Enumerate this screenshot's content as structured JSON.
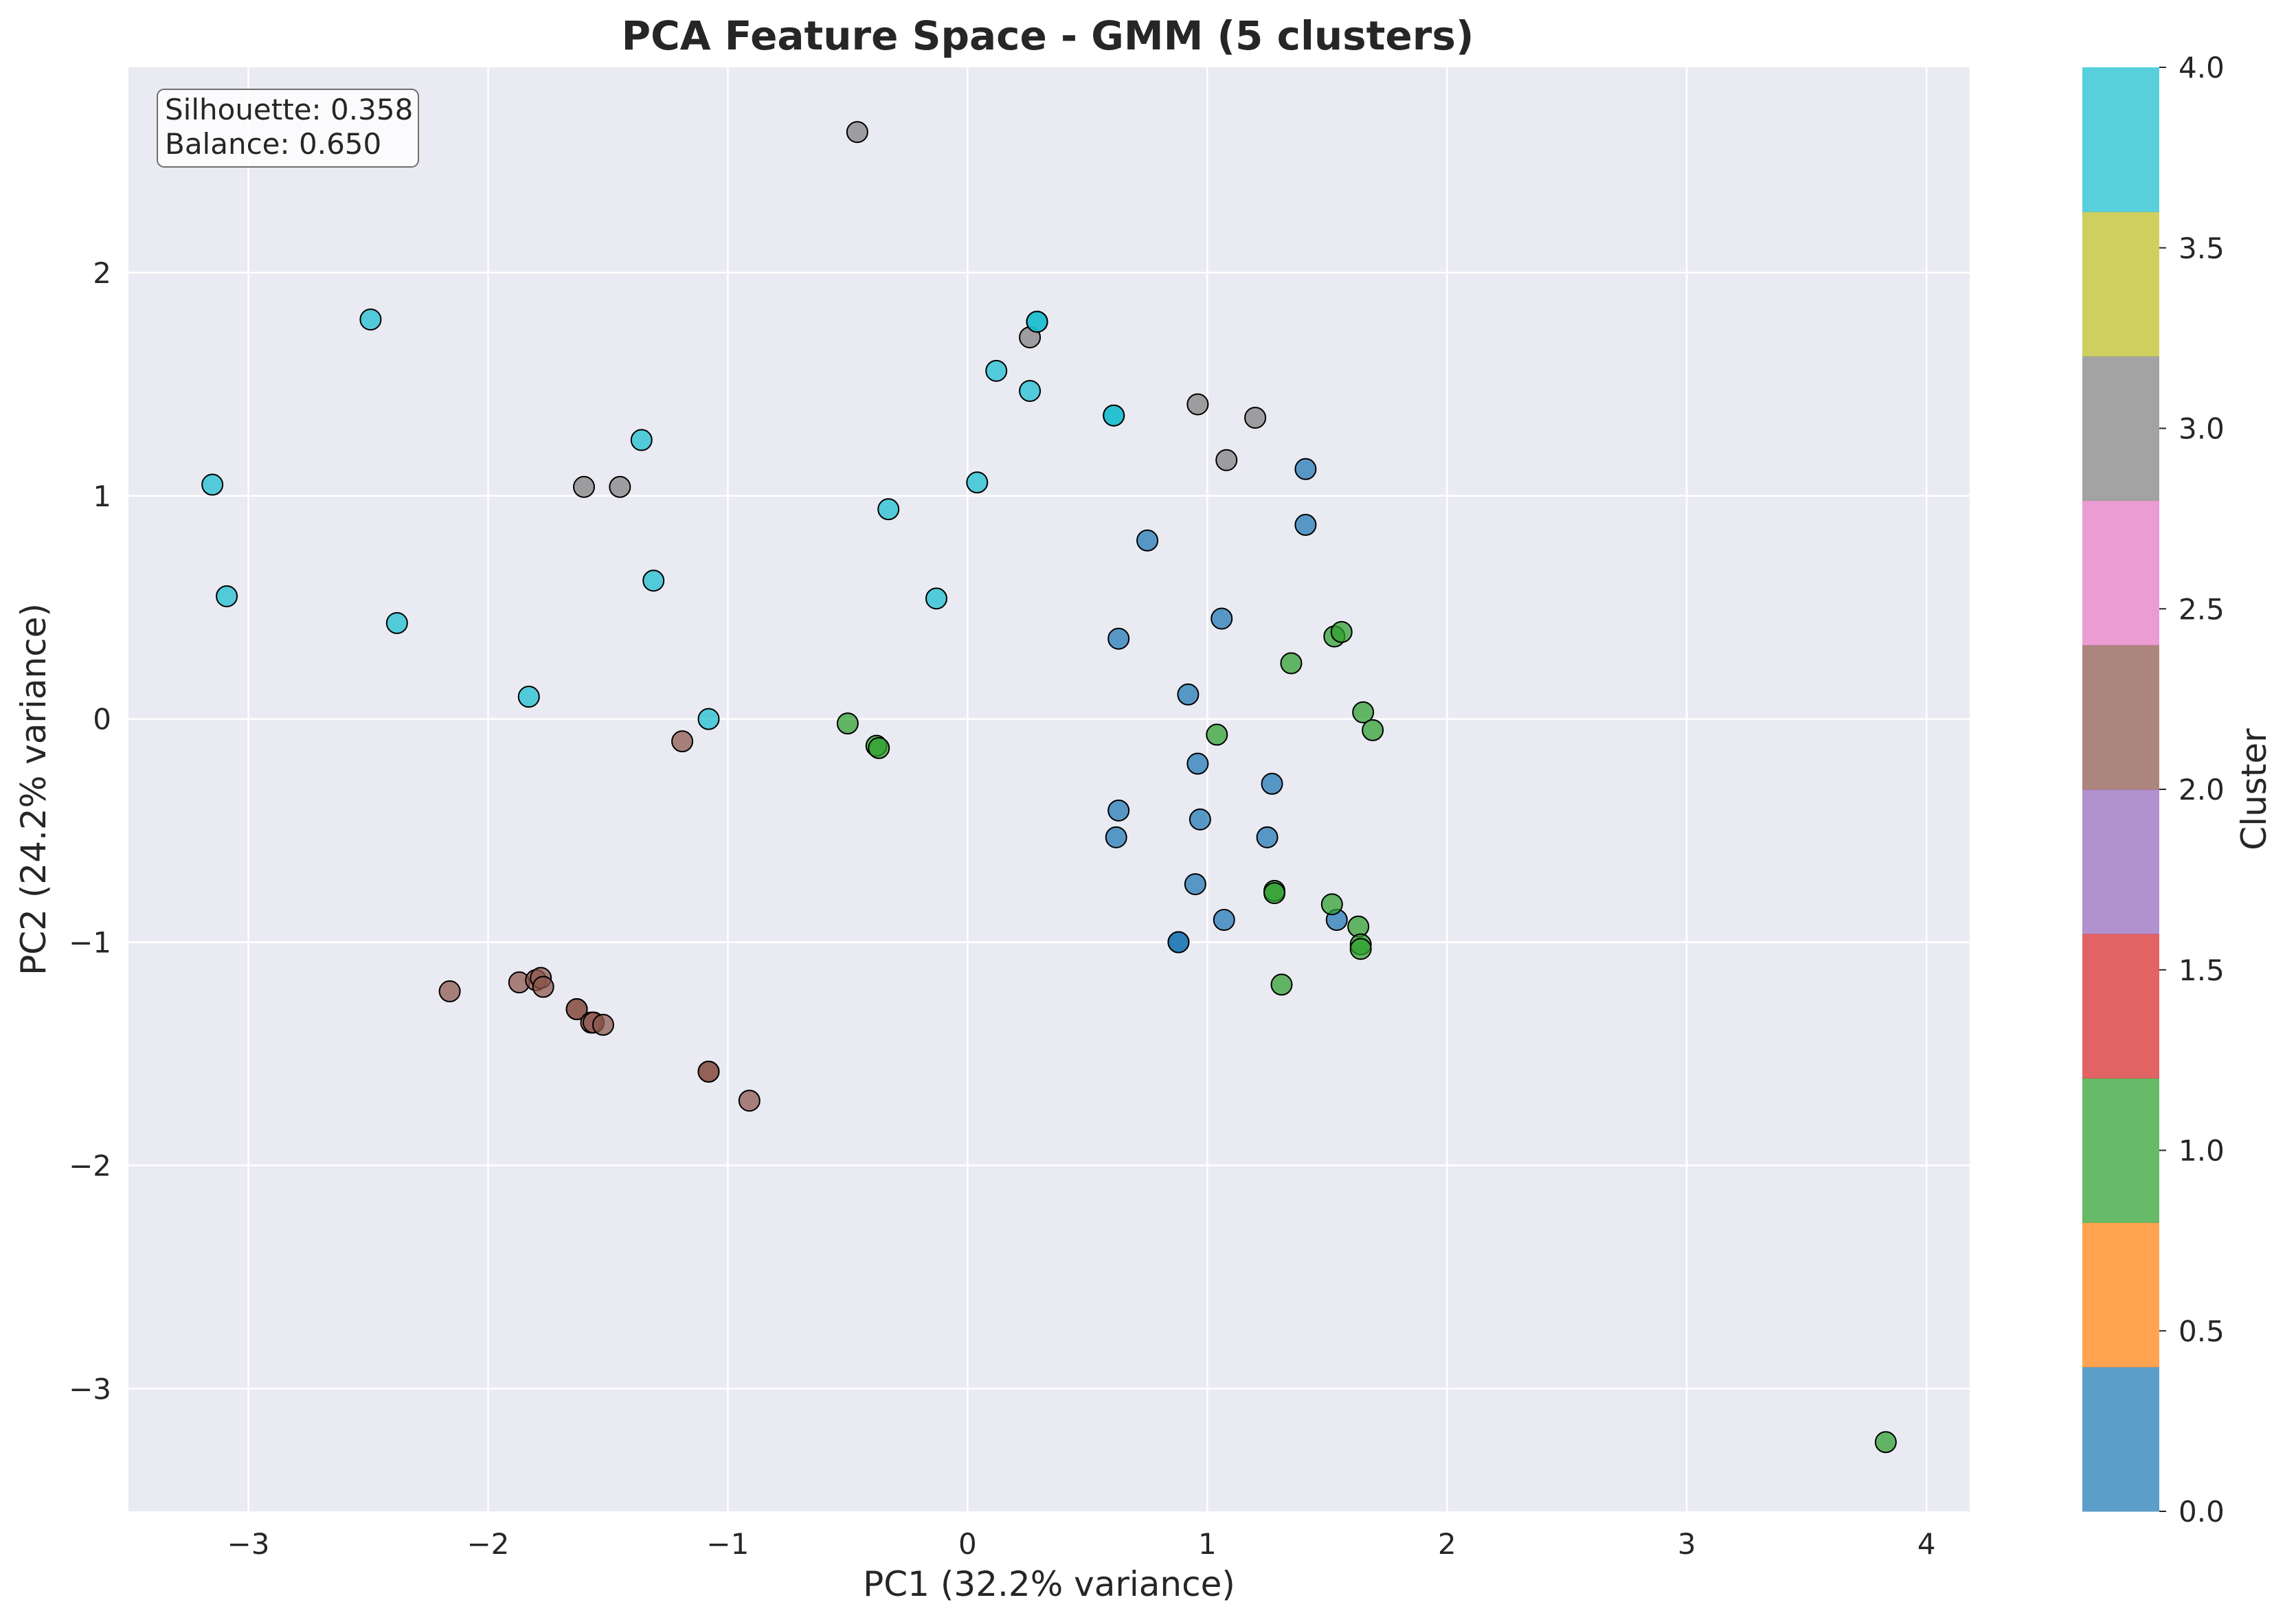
{
  "chart_data": {
    "type": "scatter",
    "title": "PCA Feature Space - GMM (5 clusters)",
    "xlabel": "PC1 (32.2% variance)",
    "ylabel": "PC2 (24.2% variance)",
    "xlim": [
      -3.5,
      4.18
    ],
    "ylim": [
      -3.55,
      2.92
    ],
    "xticks": [
      -3,
      -2,
      -1,
      0,
      1,
      2,
      3,
      4
    ],
    "xtick_labels": [
      "−3",
      "−2",
      "−1",
      "0",
      "1",
      "2",
      "3",
      "4"
    ],
    "yticks": [
      -3,
      -2,
      -1,
      0,
      1,
      2
    ],
    "ytick_labels": [
      "−3",
      "−2",
      "−1",
      "0",
      "1",
      "2"
    ],
    "grid": true,
    "background": "#eaeaf2",
    "annotation": {
      "lines": [
        "Silhouette: 0.358",
        "Balance: 0.650"
      ],
      "placement": "top-left"
    },
    "colorbar": {
      "label": "Cluster",
      "range": [
        0,
        4
      ],
      "tick_values": [
        0,
        0.5,
        1,
        1.5,
        2,
        2.5,
        3,
        3.5,
        4
      ],
      "tick_labels": [
        "0.0",
        "0.5",
        "1.0",
        "1.5",
        "2.0",
        "2.5",
        "3.0",
        "3.5",
        "4.0"
      ],
      "colors": [
        "#1f77b4",
        "#ff7f0e",
        "#2ca02c",
        "#d62728",
        "#9467bd",
        "#8c564b",
        "#e377c2",
        "#7f7f7f",
        "#bcbd22",
        "#17becf"
      ]
    },
    "cluster_colors": [
      "#1f77b4",
      "#2ca02c",
      "#8c564b",
      "#7f7f7f",
      "#17becf"
    ],
    "point_alpha": 0.72,
    "series": [
      {
        "cluster": 0,
        "points": [
          [
            0.88,
            -1.0
          ],
          [
            0.88,
            -1.0
          ],
          [
            0.95,
            -0.74
          ],
          [
            1.07,
            -0.9
          ],
          [
            1.54,
            -0.9
          ],
          [
            0.62,
            -0.53
          ],
          [
            0.63,
            -0.41
          ],
          [
            0.97,
            -0.45
          ],
          [
            1.25,
            -0.53
          ],
          [
            1.27,
            -0.29
          ],
          [
            0.96,
            -0.2
          ],
          [
            0.92,
            0.11
          ],
          [
            0.63,
            0.36
          ],
          [
            1.06,
            0.45
          ],
          [
            0.75,
            0.8
          ],
          [
            1.41,
            0.87
          ],
          [
            1.41,
            1.12
          ]
        ]
      },
      {
        "cluster": 1,
        "points": [
          [
            -0.5,
            -0.02
          ],
          [
            -0.38,
            -0.12
          ],
          [
            -0.37,
            -0.13
          ],
          [
            1.04,
            -0.07
          ],
          [
            1.35,
            0.25
          ],
          [
            1.53,
            0.37
          ],
          [
            1.56,
            0.39
          ],
          [
            1.65,
            0.03
          ],
          [
            1.69,
            -0.05
          ],
          [
            1.28,
            -0.77
          ],
          [
            1.28,
            -0.78
          ],
          [
            1.52,
            -0.83
          ],
          [
            1.63,
            -0.93
          ],
          [
            1.64,
            -1.01
          ],
          [
            1.64,
            -1.03
          ],
          [
            1.31,
            -1.19
          ],
          [
            3.83,
            -3.24
          ]
        ]
      },
      {
        "cluster": 2,
        "points": [
          [
            -1.19,
            -0.1
          ],
          [
            -2.16,
            -1.22
          ],
          [
            -1.87,
            -1.18
          ],
          [
            -1.8,
            -1.17
          ],
          [
            -1.78,
            -1.16
          ],
          [
            -1.77,
            -1.2
          ],
          [
            -1.63,
            -1.3
          ],
          [
            -1.63,
            -1.3
          ],
          [
            -1.57,
            -1.36
          ],
          [
            -1.56,
            -1.36
          ],
          [
            -1.52,
            -1.37
          ],
          [
            -1.08,
            -1.58
          ],
          [
            -1.08,
            -1.58
          ],
          [
            -0.91,
            -1.71
          ]
        ]
      },
      {
        "cluster": 3,
        "points": [
          [
            -0.46,
            2.63
          ],
          [
            -1.6,
            1.04
          ],
          [
            -1.45,
            1.04
          ],
          [
            0.26,
            1.71
          ],
          [
            0.96,
            1.41
          ],
          [
            1.2,
            1.35
          ],
          [
            1.08,
            1.16
          ]
        ]
      },
      {
        "cluster": 4,
        "points": [
          [
            -2.49,
            1.79
          ],
          [
            -3.15,
            1.05
          ],
          [
            -3.09,
            0.55
          ],
          [
            -2.38,
            0.43
          ],
          [
            -1.36,
            1.25
          ],
          [
            -1.31,
            0.62
          ],
          [
            -1.83,
            0.1
          ],
          [
            -1.08,
            0.0
          ],
          [
            -0.33,
            0.94
          ],
          [
            -0.13,
            0.54
          ],
          [
            0.04,
            1.06
          ],
          [
            0.12,
            1.56
          ],
          [
            0.26,
            1.47
          ],
          [
            0.29,
            1.78
          ],
          [
            0.29,
            1.78
          ],
          [
            0.61,
            1.36
          ],
          [
            0.61,
            1.36
          ]
        ]
      }
    ]
  }
}
